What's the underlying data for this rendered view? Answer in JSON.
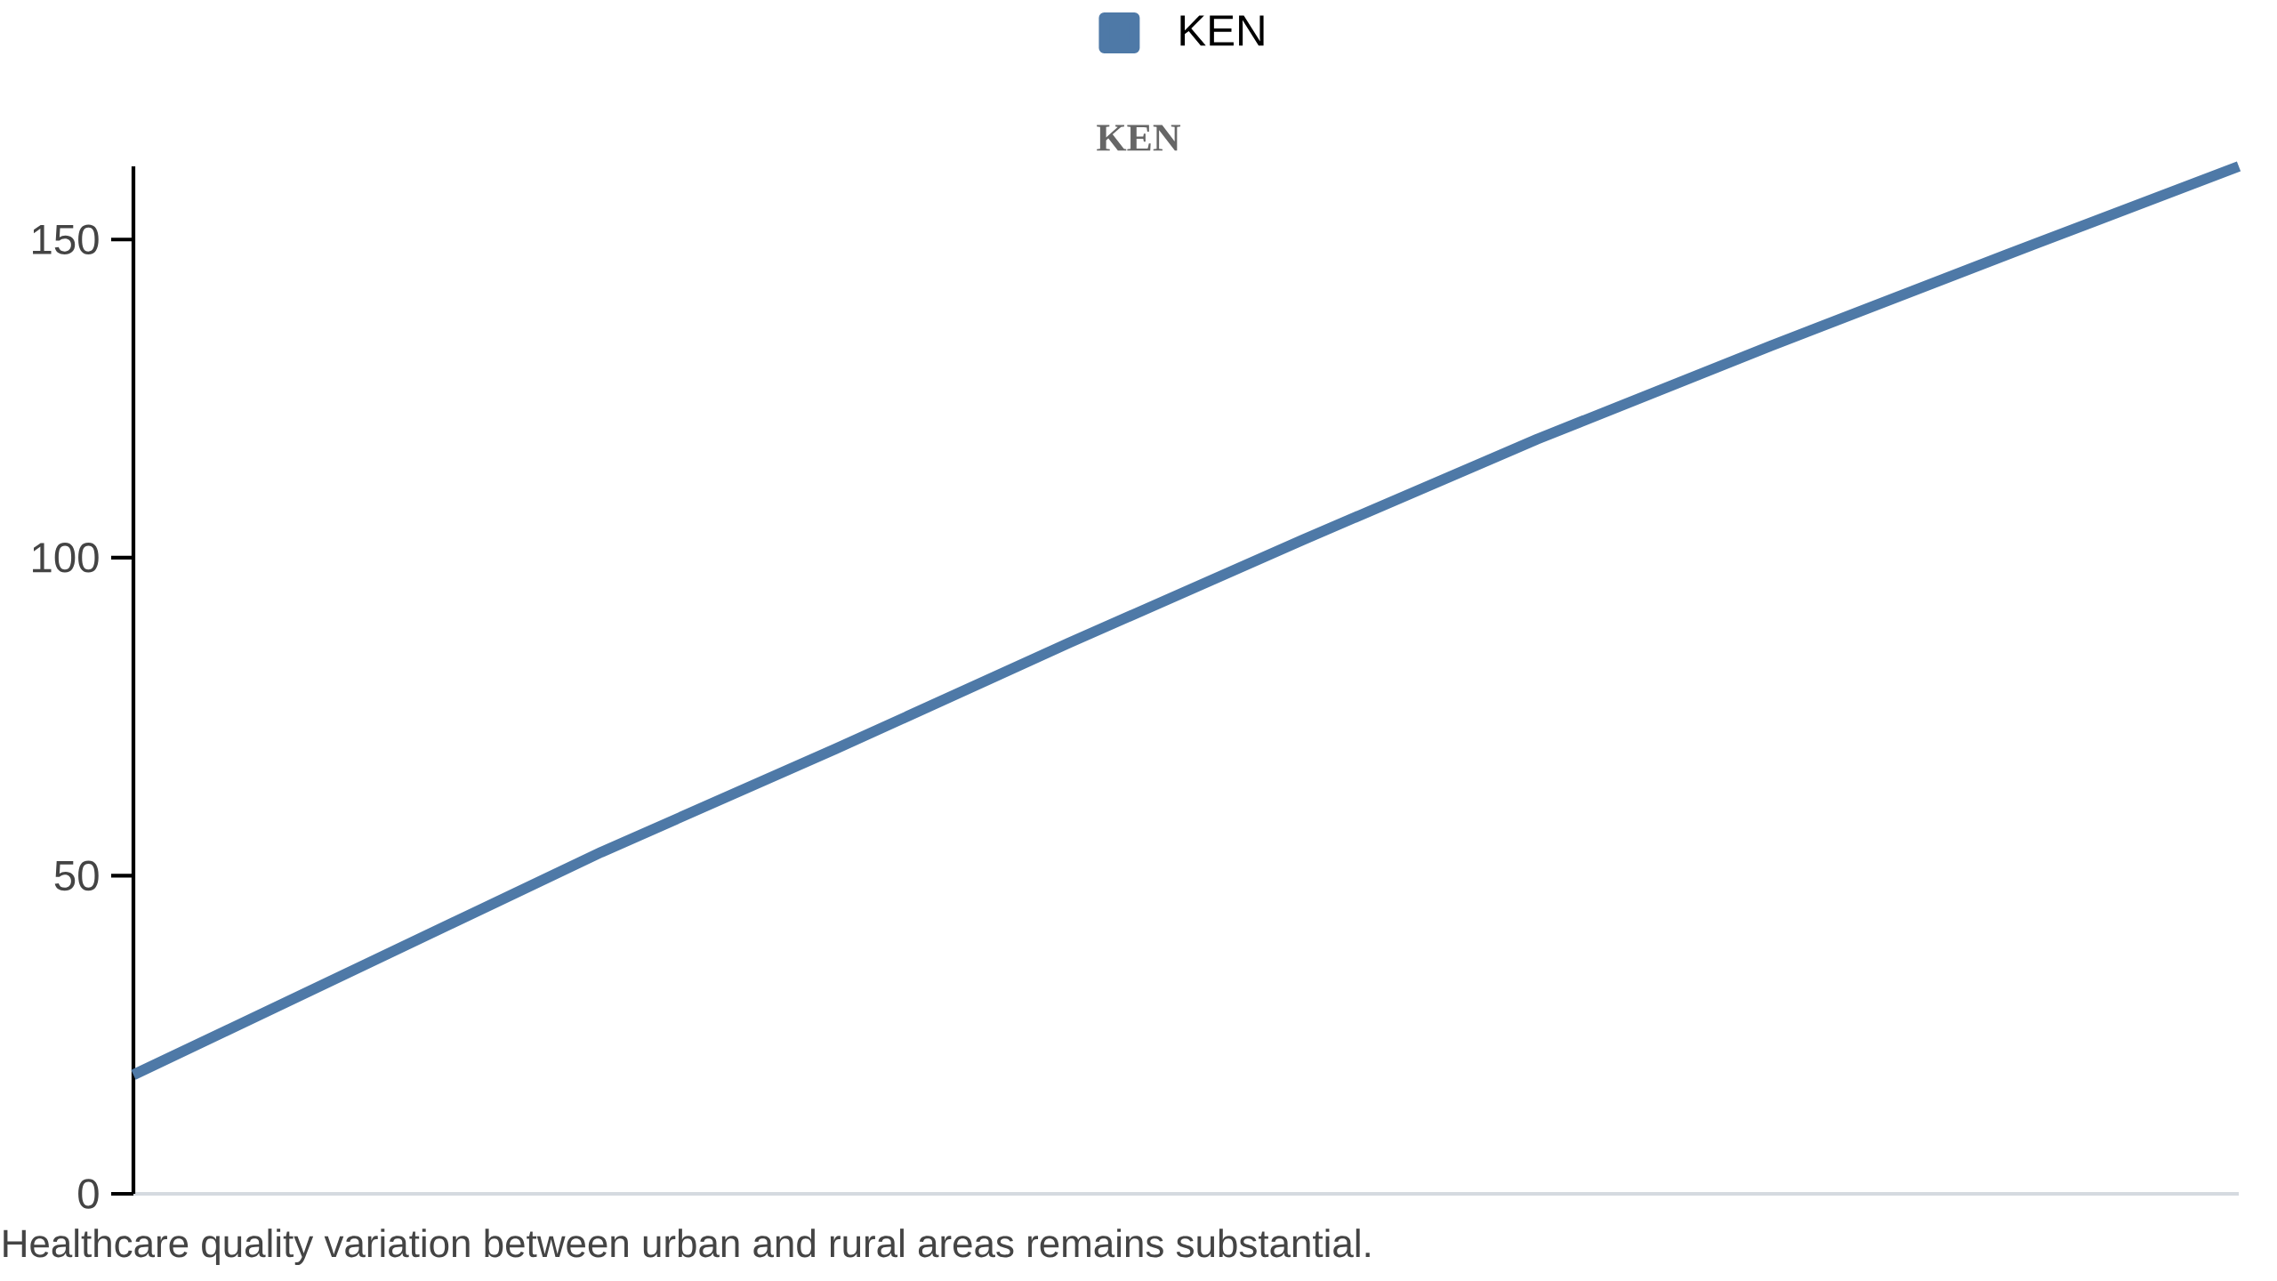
{
  "chart_data": {
    "type": "line",
    "title": "KEN",
    "categories": [
      null,
      null,
      null,
      null,
      null,
      null,
      null,
      null,
      null,
      null
    ],
    "series": [
      {
        "name": "KEN",
        "color": "#4e79a7",
        "values": [
          18.7,
          36.2,
          53.7,
          69.9,
          86.6,
          102.8,
          118.6,
          133.3,
          147.5,
          161.5
        ]
      }
    ],
    "ylim": [
      0,
      161.5
    ],
    "yticks": [
      0,
      50,
      100,
      150
    ],
    "legend": "top",
    "annotations": [
      "Healthcare quality variation between urban and rural areas remains substantial."
    ]
  }
}
